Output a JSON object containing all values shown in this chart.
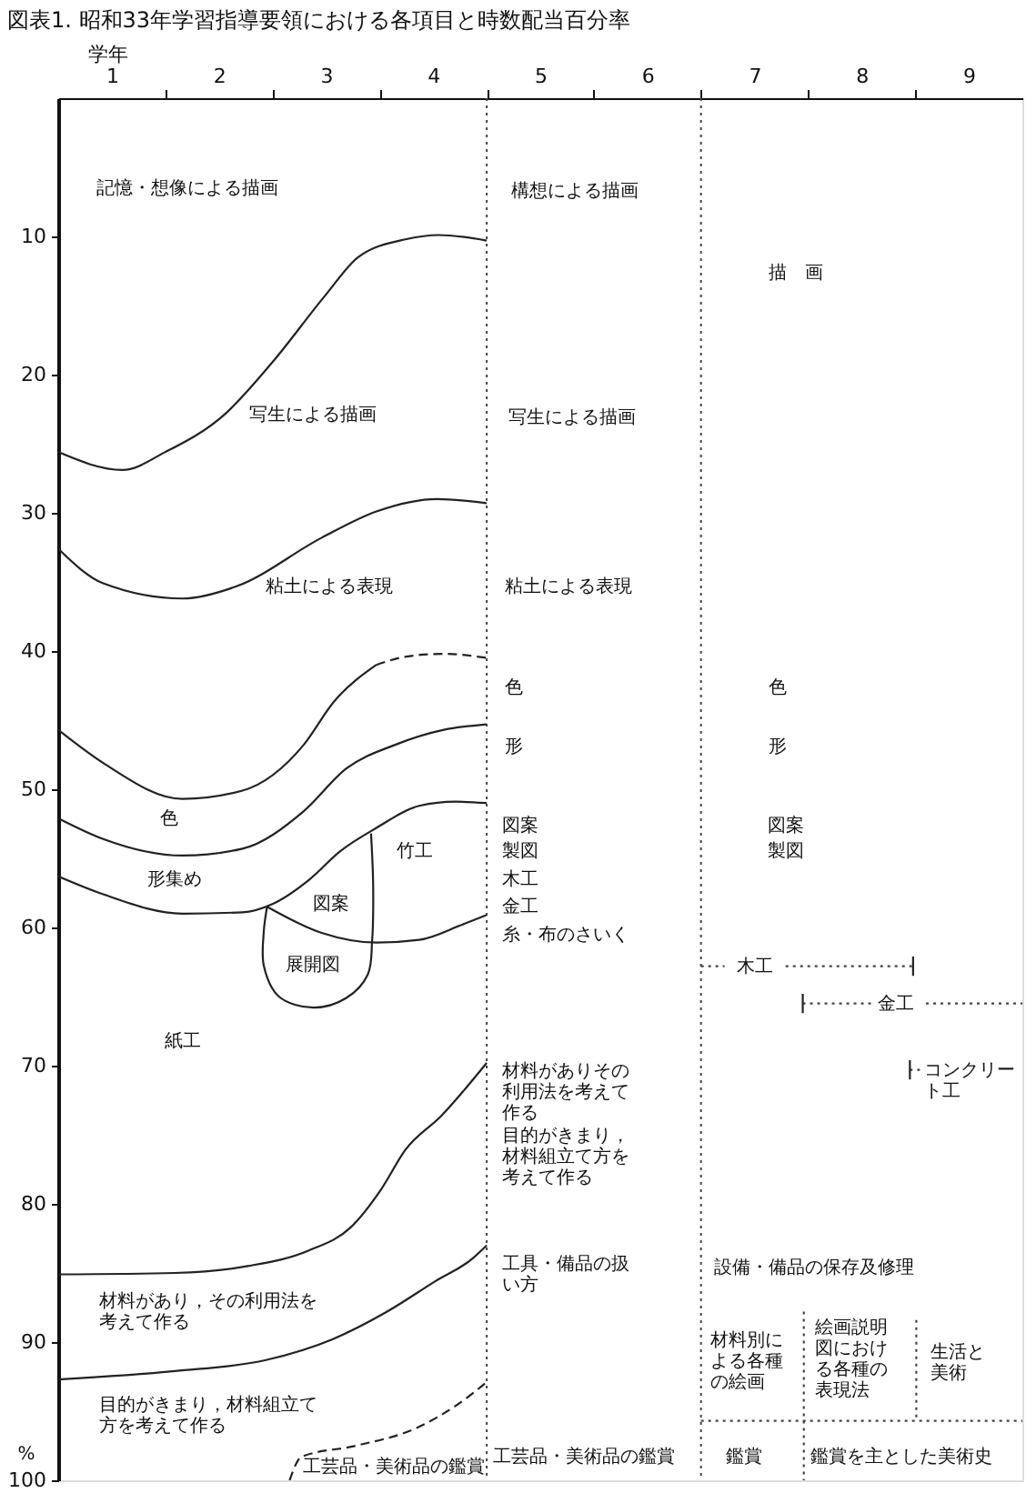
{
  "chart_data": {
    "type": "line",
    "title": "図表1. 昭和33年学習指導要領における各項目と時数配当百分率",
    "xlabel": "学年",
    "ylabel": "%",
    "xlim": [
      0.5,
      9.5
    ],
    "xticks": [
      1,
      {
        "value": 1.5,
        "label": null
      },
      2,
      {
        "value": 2.5,
        "label": null
      },
      3,
      {
        "value": 3.5,
        "label": null
      },
      4,
      {
        "value": 4.5,
        "label": null
      },
      5,
      {
        "value": 5.5,
        "label": null
      },
      6,
      {
        "value": 6.5,
        "label": null
      },
      7,
      {
        "value": 7.5,
        "label": null
      },
      8,
      {
        "value": 8.5,
        "label": null
      },
      9
    ],
    "ylim": [
      100,
      0
    ],
    "yticks": [
      10,
      20,
      30,
      40,
      50,
      60,
      70,
      80,
      90,
      100
    ],
    "series": [
      {
        "color": "#222222",
        "x": [
          0.5,
          1.1,
          1.5,
          2.05,
          2.5,
          3.0,
          3.3,
          3.75,
          4.05,
          4.5
        ],
        "values": [
          25.6,
          26.9,
          25.6,
          22.9,
          19.1,
          14.2,
          11.5,
          10.2,
          9.9,
          10.3
        ]
      },
      {
        "color": "#222222",
        "x": [
          0.5,
          0.92,
          1.66,
          2.17,
          2.96,
          3.47,
          4.04,
          4.5
        ],
        "values": [
          32.6,
          35.1,
          36.2,
          35.3,
          31.8,
          29.9,
          29.0,
          29.3
        ]
      },
      {
        "color": "#222222",
        "x": [
          0.5,
          0.92,
          1.66,
          2.22,
          2.79,
          3.07,
          3.47
        ],
        "values": [
          45.7,
          48.1,
          50.7,
          50.1,
          46.8,
          43.7,
          41.0
        ]
      },
      {
        "color": "#222222",
        "line_style": "dashed",
        "x": [
          3.47,
          3.75,
          4.1,
          4.5
        ],
        "values": [
          41.0,
          40.4,
          40.2,
          40.5
        ]
      },
      {
        "color": "#222222",
        "x": [
          0.5,
          0.92,
          1.66,
          2.22,
          2.79,
          3.19,
          3.64,
          4.1,
          4.5
        ],
        "values": [
          52.1,
          53.6,
          54.8,
          54.3,
          51.6,
          48.5,
          46.8,
          45.7,
          45.3
        ]
      },
      {
        "color": "#222222",
        "x": [
          0.5,
          0.92,
          1.66,
          2.22,
          2.5,
          2.85,
          3.13,
          3.47,
          3.87,
          4.21,
          4.5
        ],
        "values": [
          56.3,
          57.6,
          59.0,
          58.9,
          58.3,
          56.5,
          54.5,
          52.8,
          51.2,
          50.9,
          51.0
        ]
      },
      {
        "color": "#222222",
        "x": [
          2.45,
          2.96,
          3.47,
          3.87,
          4.27,
          4.5
        ],
        "values": [
          58.5,
          60.4,
          61.1,
          60.9,
          59.8,
          59.1
        ]
      },
      {
        "color": "#222222",
        "x": [
          3.42,
          3.44,
          3.43,
          3.39,
          3.19,
          2.88,
          2.56,
          2.42,
          2.42,
          2.45
        ],
        "values": [
          53.2,
          57.0,
          61.0,
          63.4,
          65.1,
          65.8,
          65.0,
          62.8,
          60.2,
          58.5
        ]
      },
      {
        "color": "#222222",
        "x": [
          0.5,
          1.59,
          2.27,
          2.83,
          3.23,
          3.51,
          3.74,
          4.08,
          4.5
        ],
        "values": [
          85.1,
          85.0,
          84.5,
          83.4,
          81.7,
          79.0,
          76.1,
          73.6,
          69.8
        ]
      },
      {
        "color": "#222222",
        "x": [
          0.5,
          1.59,
          2.44,
          3.06,
          3.57,
          4.02,
          4.36,
          4.5
        ],
        "values": [
          92.7,
          92.1,
          91.3,
          89.8,
          87.8,
          85.6,
          84.0,
          83.0
        ]
      },
      {
        "color": "#222222",
        "line_style": "dashed",
        "x": [
          2.66,
          2.77,
          3.28,
          3.85,
          4.25,
          4.5
        ],
        "values": [
          100,
          98.3,
          97.5,
          96.2,
          94.4,
          92.9
        ]
      },
      {
        "color": "#444444",
        "line_style": "dotted",
        "x": [
          6.5,
          6.72,
          6.8,
          7.29,
          8.48
        ],
        "values": [
          62.8,
          62.8,
          null,
          62.8,
          62.8
        ]
      },
      {
        "color": "#222222",
        "x": [
          8.48,
          8.48
        ],
        "values": [
          62.1,
          63.5
        ]
      },
      {
        "color": "#444444",
        "line_style": "dotted",
        "x": [
          7.45,
          8.1,
          8.3,
          8.6,
          9.5
        ],
        "values": [
          65.5,
          65.5,
          null,
          65.5,
          65.5
        ]
      },
      {
        "color": "#222222",
        "x": [
          7.45,
          7.45
        ],
        "values": [
          64.8,
          66.2
        ]
      },
      {
        "color": "#444444",
        "line_style": "dotted",
        "x": [
          8.45,
          8.56
        ],
        "values": [
          70.3,
          70.3
        ]
      },
      {
        "color": "#222222",
        "x": [
          8.45,
          8.45
        ],
        "values": [
          69.6,
          71.0
        ]
      },
      {
        "color": "#444444",
        "line_style": "dotted",
        "x": [
          6.5,
          9.5
        ],
        "values": [
          95.7,
          95.7
        ]
      },
      {
        "color": "#444444",
        "line_style": "dotted",
        "x": [
          7.46,
          7.46
        ],
        "values": [
          87.8,
          100
        ]
      },
      {
        "color": "#444444",
        "line_style": "dotted",
        "x": [
          8.51,
          8.51
        ],
        "values": [
          88.4,
          95.7
        ]
      }
    ],
    "ref_lines": [
      {
        "axis": "x",
        "value": 4.5,
        "color": "#444444",
        "line_style": "dotted"
      },
      {
        "axis": "x",
        "value": 6.5,
        "color": "#444444",
        "line_style": "dotted"
      }
    ],
    "annotations": [
      "記憶・想像による描画",
      "写生による描画",
      "粘土による表現",
      "色",
      "形集め",
      "図案",
      "竹工",
      "展開図",
      "紙工",
      "材料があり，その利用法を考えて作る",
      "目的がきまり，材料組立て方を考えて作る",
      "工芸品・美術品の鑑賞",
      "構想による描画",
      "写生による描画",
      "粘土による表現",
      "色",
      "形",
      "図案",
      "製図",
      "木工",
      "金工",
      "糸・布のさいく",
      "材料がありその利用法を考えて作る",
      "目的がきまり，材料組立て方を考えて作る",
      "工具・備品の扱い方",
      "工芸品・美術品の鑑賞",
      "描　画",
      "色",
      "形",
      "図案",
      "製図",
      "木工",
      "金工",
      "コンクリート工",
      "設備・備品の保存及修理",
      "材料別による各種の絵画",
      "絵画説明図における各種の表現法",
      "生活と美術",
      "鑑賞",
      "鑑賞を主とした美術史"
    ]
  }
}
